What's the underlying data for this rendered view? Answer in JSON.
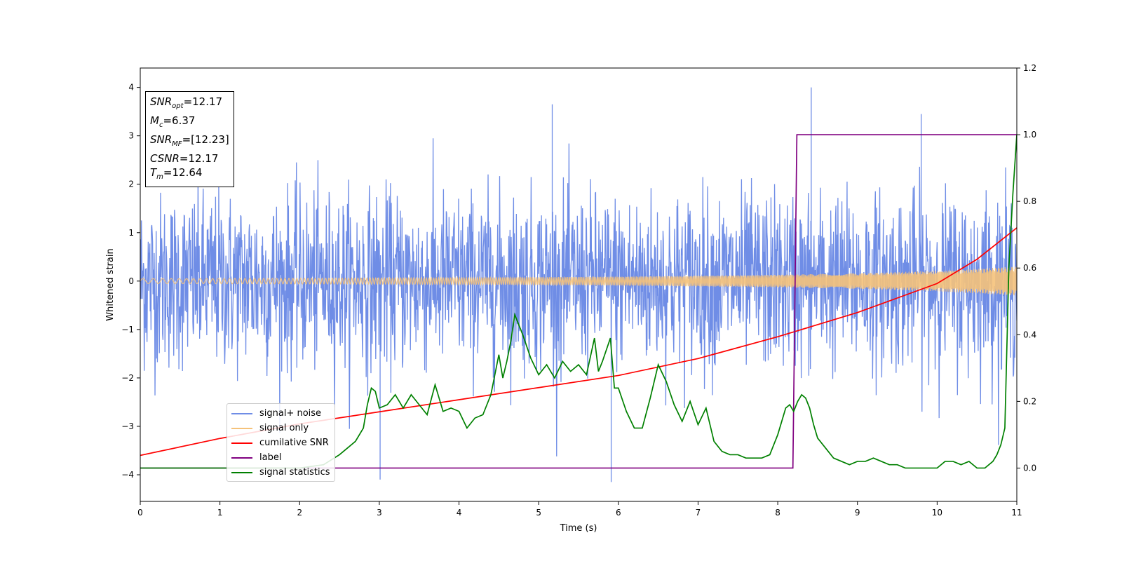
{
  "chart_data": {
    "type": "line",
    "xlabel": "Time (s)",
    "ylabel": "Whitened strain",
    "xlim": [
      0,
      11
    ],
    "ylim": [
      -4.55,
      4.4
    ],
    "y2lim": [
      -0.1,
      1.2
    ],
    "x_ticks": [
      "0",
      "1",
      "2",
      "3",
      "4",
      "5",
      "6",
      "7",
      "8",
      "9",
      "10",
      "11"
    ],
    "y_ticks": [
      "4",
      "3",
      "2",
      "1",
      "0",
      "−1",
      "−2",
      "−3",
      "−4"
    ],
    "y2_ticks": [
      "1.2",
      "1.0",
      "0.8",
      "0.6",
      "0.4",
      "0.2",
      "0.0"
    ],
    "grid": false,
    "legend_placement": "lower-left",
    "annotation": [
      {
        "sym": "SNR",
        "sub": "opt",
        "val": "=12.17"
      },
      {
        "sym": "M",
        "sub": "c",
        "val": "=6.37"
      },
      {
        "sym": "SNR",
        "sub": "MF",
        "val": "=[12.23]"
      },
      {
        "sym": "CSNR",
        "sub": "",
        "val": "=12.17"
      },
      {
        "sym": "T",
        "sub": "m",
        "val": "=12.64"
      }
    ],
    "series": [
      {
        "name": "signal+ noise",
        "axis": "left",
        "color": "#6f8de6",
        "description_values": {
          "noise_std": 0.9,
          "max": 4.0,
          "min": -4.15
        }
      },
      {
        "name": "signal only",
        "axis": "left",
        "color": "#f5c27a",
        "x": [
          0,
          2,
          4,
          6,
          8,
          9,
          10,
          11
        ],
        "amplitude": [
          0.05,
          0.06,
          0.07,
          0.09,
          0.13,
          0.16,
          0.21,
          0.3
        ]
      },
      {
        "name": "cumilative SNR",
        "axis": "left",
        "color": "#ff0000",
        "x": [
          0,
          1,
          2,
          3,
          4,
          5,
          6,
          7,
          8,
          8.5,
          9,
          9.5,
          10,
          10.5,
          11
        ],
        "values": [
          -3.6,
          -3.25,
          -2.95,
          -2.7,
          -2.45,
          -2.2,
          -1.95,
          -1.6,
          -1.15,
          -0.9,
          -0.65,
          -0.35,
          -0.05,
          0.45,
          1.1
        ]
      },
      {
        "name": "label",
        "axis": "right",
        "color": "#800080",
        "x": [
          0,
          8.19,
          8.24,
          11
        ],
        "values": [
          0,
          0,
          1,
          1
        ]
      },
      {
        "name": "signal statistics",
        "axis": "right",
        "color": "#008000",
        "x": [
          0,
          0.3,
          1,
          1.5,
          2,
          2.3,
          2.5,
          2.6,
          2.7,
          2.8,
          2.85,
          2.9,
          2.95,
          3.0,
          3.1,
          3.2,
          3.3,
          3.4,
          3.5,
          3.6,
          3.7,
          3.8,
          3.9,
          4.0,
          4.1,
          4.2,
          4.3,
          4.4,
          4.5,
          4.55,
          4.6,
          4.65,
          4.7,
          4.8,
          4.9,
          5.0,
          5.1,
          5.2,
          5.3,
          5.4,
          5.5,
          5.6,
          5.7,
          5.75,
          5.8,
          5.9,
          5.95,
          6.0,
          6.1,
          6.2,
          6.3,
          6.4,
          6.5,
          6.6,
          6.7,
          6.8,
          6.9,
          7.0,
          7.1,
          7.2,
          7.3,
          7.4,
          7.5,
          7.6,
          7.7,
          7.8,
          7.9,
          8.0,
          8.1,
          8.15,
          8.2,
          8.25,
          8.3,
          8.35,
          8.4,
          8.45,
          8.5,
          8.6,
          8.7,
          8.8,
          8.9,
          9.0,
          9.1,
          9.2,
          9.3,
          9.4,
          9.5,
          9.6,
          9.7,
          9.8,
          9.9,
          10.0,
          10.1,
          10.2,
          10.3,
          10.4,
          10.5,
          10.6,
          10.7,
          10.75,
          10.8,
          10.85,
          10.9,
          10.95,
          11.0
        ],
        "values": [
          0.0,
          0.0,
          0.0,
          0.0,
          0.0,
          0.01,
          0.04,
          0.06,
          0.08,
          0.12,
          0.19,
          0.24,
          0.23,
          0.18,
          0.19,
          0.22,
          0.18,
          0.22,
          0.19,
          0.16,
          0.25,
          0.17,
          0.18,
          0.17,
          0.12,
          0.15,
          0.16,
          0.22,
          0.34,
          0.27,
          0.32,
          0.38,
          0.46,
          0.4,
          0.33,
          0.28,
          0.31,
          0.27,
          0.32,
          0.29,
          0.31,
          0.28,
          0.39,
          0.29,
          0.32,
          0.39,
          0.24,
          0.24,
          0.17,
          0.12,
          0.12,
          0.21,
          0.31,
          0.26,
          0.19,
          0.14,
          0.2,
          0.13,
          0.18,
          0.08,
          0.05,
          0.04,
          0.04,
          0.03,
          0.03,
          0.03,
          0.04,
          0.1,
          0.18,
          0.19,
          0.17,
          0.2,
          0.22,
          0.21,
          0.18,
          0.13,
          0.09,
          0.06,
          0.03,
          0.02,
          0.01,
          0.02,
          0.02,
          0.03,
          0.02,
          0.01,
          0.01,
          0.0,
          0.0,
          0.0,
          0.0,
          0.0,
          0.02,
          0.02,
          0.01,
          0.02,
          0.0,
          0.0,
          0.02,
          0.04,
          0.07,
          0.12,
          0.6,
          0.82,
          1.0
        ]
      }
    ]
  }
}
